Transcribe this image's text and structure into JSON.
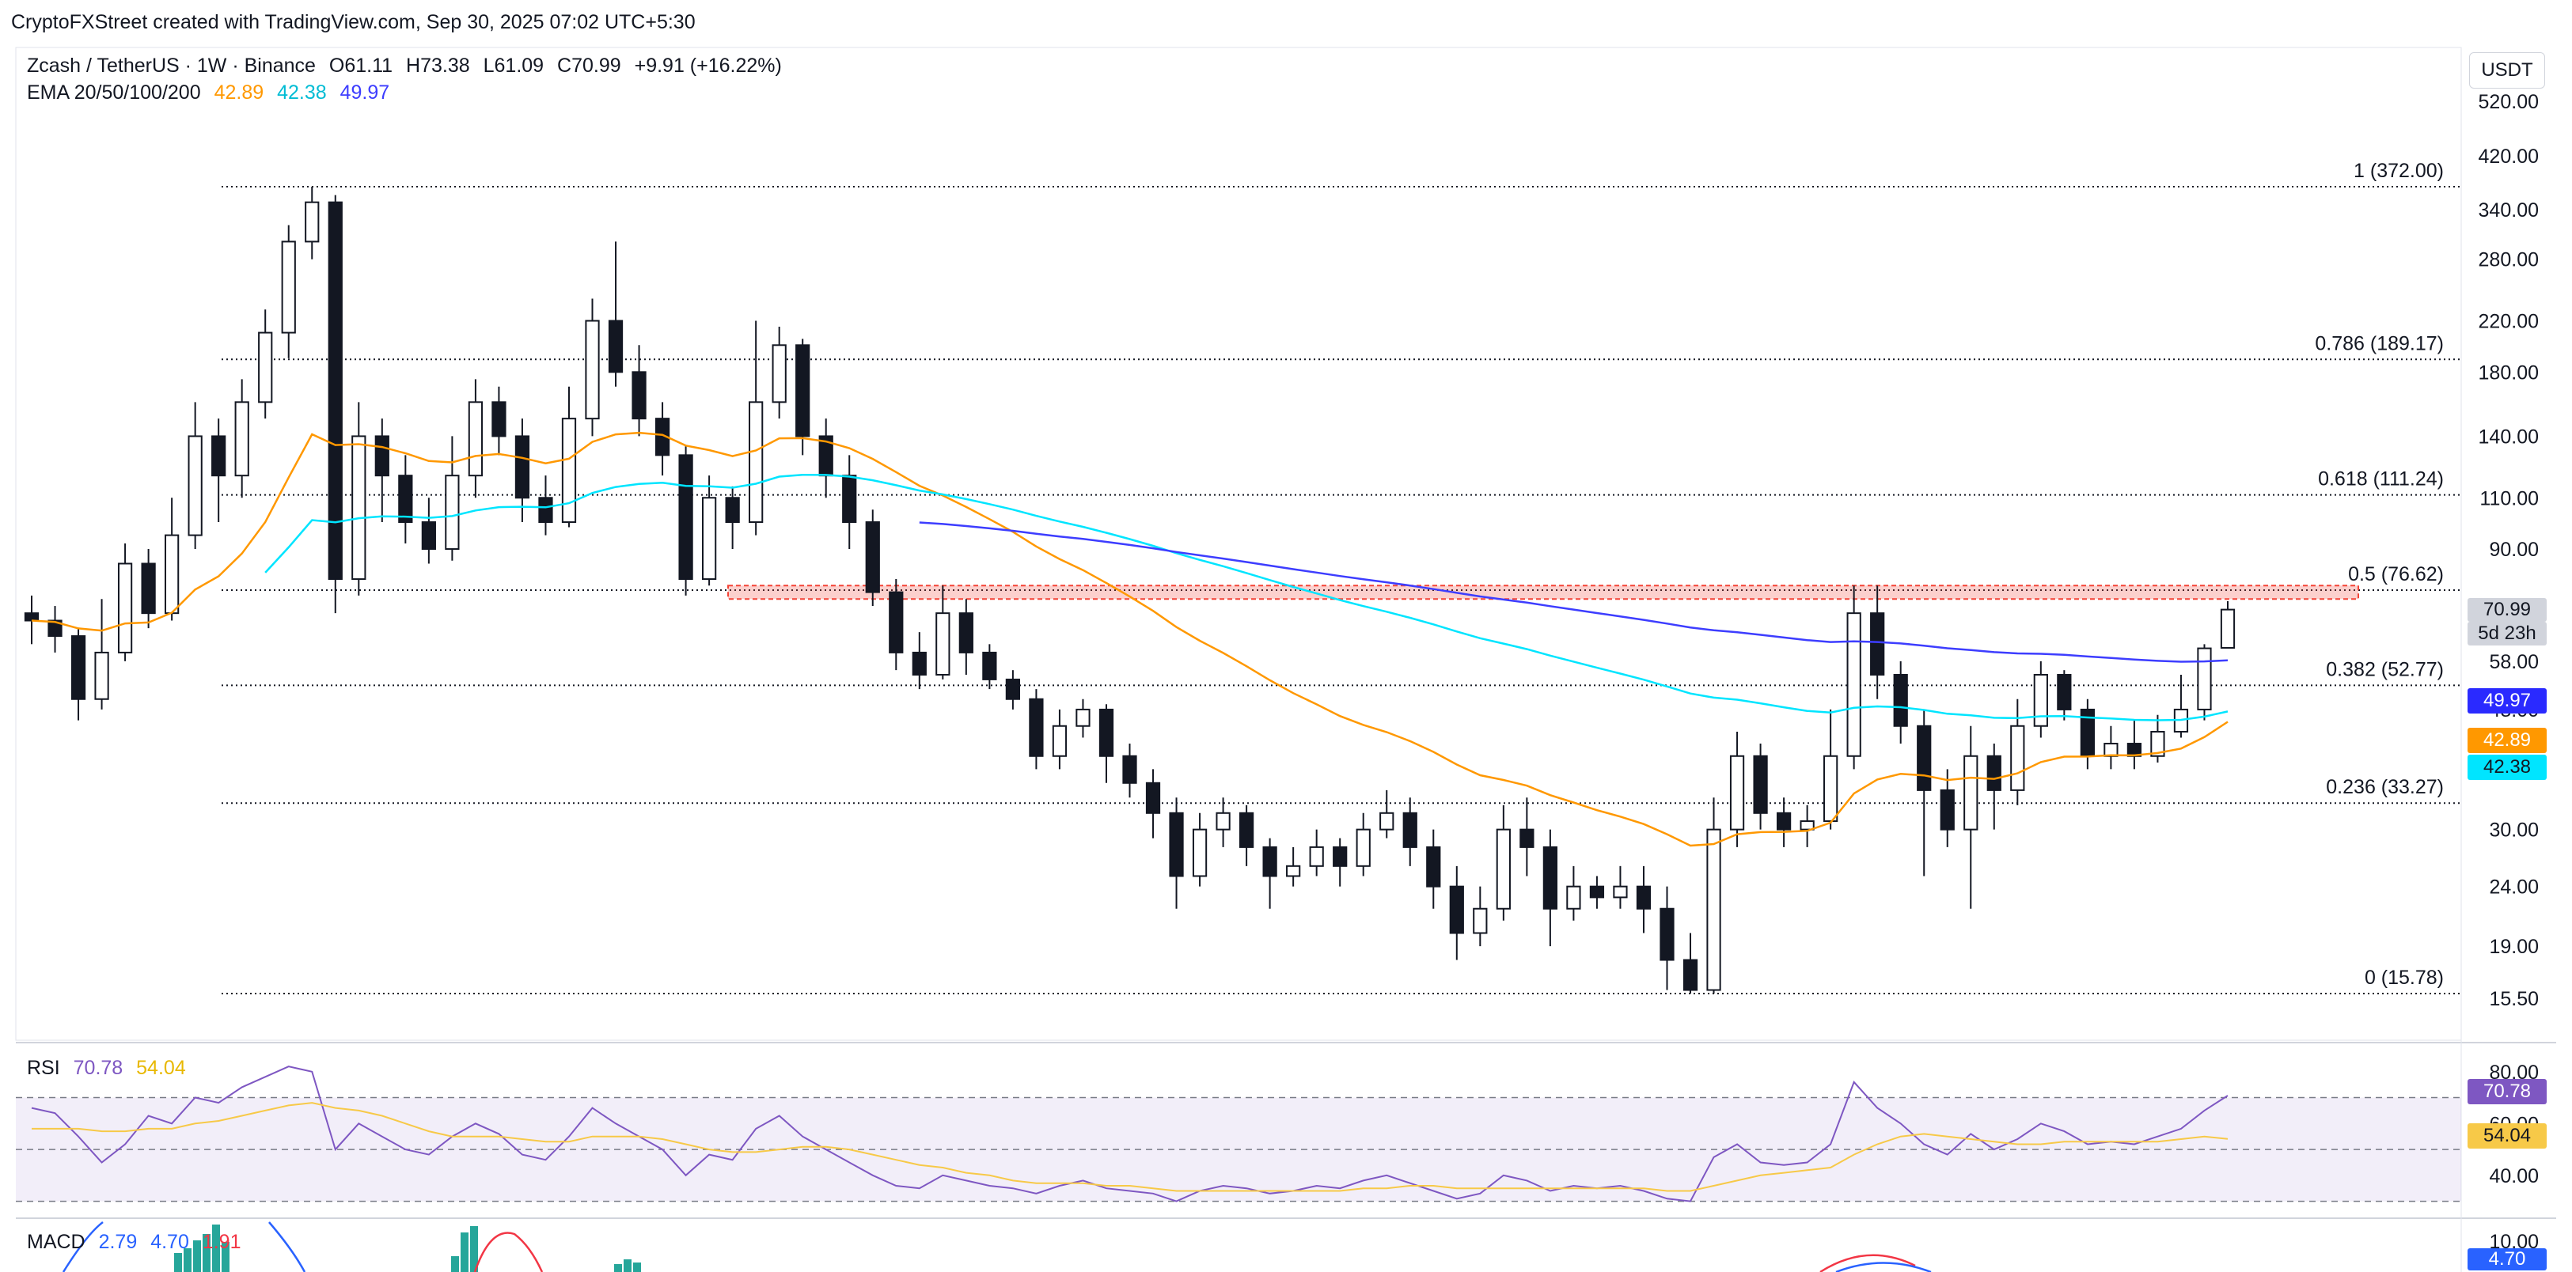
{
  "header": {
    "attribution": "CryptoFXStreet created with TradingView.com, Sep 30, 2025 07:02 UTC+5:30"
  },
  "symbol": {
    "title": "Zcash / TetherUS · 1W · Binance",
    "open": "O61.11",
    "high": "H73.38",
    "low": "L61.09",
    "close": "C70.99",
    "change": "+9.91 (+16.22%)",
    "currency": "USDT"
  },
  "ema_legend": {
    "label": "EMA 20/50/100/200",
    "ema20": "42.89",
    "ema50": "42.38",
    "ema100": "49.97"
  },
  "price_tags": {
    "last_price": "70.99",
    "countdown": "5d 23h",
    "ema100": "49.97",
    "ema20": "42.89",
    "ema50": "42.38"
  },
  "rsi": {
    "label": "RSI",
    "value": "70.78",
    "ma": "54.04"
  },
  "macd": {
    "label": "MACD",
    "v1": "2.79",
    "v2": "4.70",
    "v3": "1.91",
    "tag": "4.70"
  },
  "colors": {
    "up": "#089981",
    "down": "#131722",
    "ema20": "#ff9800",
    "ema50": "#00e5ff",
    "ema100": "#3d3dff",
    "rsi": "#7e57c2",
    "rsi_ma": "#f7c948",
    "resistance": "#f44336"
  },
  "chart_data": [
    {
      "type": "candlestick",
      "title": "Zcash / TetherUS · 1W · Binance",
      "scale": "log",
      "ylim": [
        15,
        600
      ],
      "y_ticks": [
        "520.00",
        "420.00",
        "340.00",
        "280.00",
        "220.00",
        "180.00",
        "140.00",
        "110.00",
        "90.00",
        "71.00",
        "58.00",
        "48.00",
        "30.00",
        "24.00",
        "19.00",
        "15.50"
      ],
      "fibonacci": [
        {
          "label": "1 (372.00)",
          "value": 372.0
        },
        {
          "label": "0.786 (189.17)",
          "value": 189.17
        },
        {
          "label": "0.618 (111.24)",
          "value": 111.24
        },
        {
          "label": "0.5 (76.62)",
          "value": 76.62
        },
        {
          "label": "0.382 (52.77)",
          "value": 52.77
        },
        {
          "label": "0.236 (33.27)",
          "value": 33.27
        },
        {
          "label": "0 (15.78)",
          "value": 15.78
        }
      ],
      "resistance_zone": [
        74.0,
        78.0
      ],
      "candles": [
        [
          70,
          68,
          75,
          62
        ],
        [
          68,
          64,
          72,
          60
        ],
        [
          64,
          50,
          66,
          46
        ],
        [
          50,
          60,
          74,
          48
        ],
        [
          60,
          85,
          92,
          58
        ],
        [
          85,
          70,
          90,
          66
        ],
        [
          70,
          95,
          110,
          68
        ],
        [
          95,
          140,
          160,
          90
        ],
        [
          140,
          120,
          150,
          100
        ],
        [
          120,
          160,
          175,
          110
        ],
        [
          160,
          210,
          230,
          150
        ],
        [
          210,
          300,
          320,
          190
        ],
        [
          300,
          350,
          372,
          280
        ],
        [
          350,
          80,
          360,
          70
        ],
        [
          80,
          140,
          160,
          75
        ],
        [
          140,
          120,
          150,
          100
        ],
        [
          120,
          100,
          130,
          92
        ],
        [
          100,
          90,
          110,
          85
        ],
        [
          90,
          120,
          140,
          86
        ],
        [
          120,
          160,
          175,
          110
        ],
        [
          160,
          140,
          170,
          130
        ],
        [
          140,
          110,
          150,
          100
        ],
        [
          110,
          100,
          120,
          95
        ],
        [
          100,
          150,
          170,
          98
        ],
        [
          150,
          220,
          240,
          140
        ],
        [
          220,
          180,
          300,
          170
        ],
        [
          180,
          150,
          200,
          140
        ],
        [
          150,
          130,
          160,
          120
        ],
        [
          130,
          80,
          135,
          75
        ],
        [
          80,
          110,
          120,
          78
        ],
        [
          110,
          100,
          115,
          90
        ],
        [
          100,
          160,
          220,
          95
        ],
        [
          160,
          200,
          215,
          150
        ],
        [
          200,
          140,
          205,
          130
        ],
        [
          140,
          120,
          150,
          110
        ],
        [
          120,
          100,
          130,
          90
        ],
        [
          100,
          76,
          105,
          72
        ],
        [
          76,
          60,
          80,
          56
        ],
        [
          60,
          55,
          65,
          52
        ],
        [
          55,
          70,
          78,
          54
        ],
        [
          70,
          60,
          74,
          55
        ],
        [
          60,
          54,
          62,
          52
        ],
        [
          54,
          50,
          56,
          48
        ],
        [
          50,
          40,
          52,
          38
        ],
        [
          40,
          45,
          48,
          38
        ],
        [
          45,
          48,
          50,
          43
        ],
        [
          48,
          40,
          49,
          36
        ],
        [
          40,
          36,
          42,
          34
        ],
        [
          36,
          32,
          38,
          29
        ],
        [
          32,
          25,
          34,
          22
        ],
        [
          25,
          30,
          32,
          24
        ],
        [
          30,
          32,
          34,
          28
        ],
        [
          32,
          28,
          33,
          26
        ],
        [
          28,
          25,
          29,
          22
        ],
        [
          25,
          26,
          28,
          24
        ],
        [
          26,
          28,
          30,
          25
        ],
        [
          28,
          26,
          29,
          24
        ],
        [
          26,
          30,
          32,
          25
        ],
        [
          30,
          32,
          35,
          29
        ],
        [
          32,
          28,
          34,
          26
        ],
        [
          28,
          24,
          30,
          22
        ],
        [
          24,
          20,
          26,
          18
        ],
        [
          20,
          22,
          24,
          19
        ],
        [
          22,
          30,
          33,
          21
        ],
        [
          30,
          28,
          34,
          25
        ],
        [
          28,
          22,
          30,
          19
        ],
        [
          22,
          24,
          26,
          21
        ],
        [
          24,
          23,
          25,
          22
        ],
        [
          23,
          24,
          26,
          22
        ],
        [
          24,
          22,
          26,
          20
        ],
        [
          22,
          18,
          24,
          16
        ],
        [
          18,
          16,
          20,
          15.78
        ],
        [
          16,
          30,
          34,
          15.78
        ],
        [
          30,
          40,
          44,
          28
        ],
        [
          40,
          32,
          42,
          30
        ],
        [
          32,
          30,
          34,
          28
        ],
        [
          30,
          31,
          33,
          28
        ],
        [
          31,
          40,
          48,
          30
        ],
        [
          40,
          70,
          78,
          38
        ],
        [
          70,
          55,
          78,
          50
        ],
        [
          55,
          45,
          58,
          42
        ],
        [
          45,
          35,
          48,
          25
        ],
        [
          35,
          30,
          38,
          28
        ],
        [
          30,
          40,
          45,
          22
        ],
        [
          40,
          35,
          42,
          30
        ],
        [
          35,
          45,
          50,
          33
        ],
        [
          45,
          55,
          58,
          43
        ],
        [
          55,
          48,
          56,
          46
        ],
        [
          48,
          40,
          50,
          38
        ],
        [
          40,
          42,
          45,
          38
        ],
        [
          42,
          40,
          46,
          38
        ],
        [
          40,
          44,
          47,
          39
        ],
        [
          44,
          48,
          55,
          43
        ],
        [
          48,
          61,
          62,
          46
        ],
        [
          61.11,
          70.99,
          73.38,
          61.09
        ]
      ]
    },
    {
      "type": "line",
      "title": "RSI",
      "ylim": [
        25,
        90
      ],
      "y_ticks": [
        "80.00",
        "60.00",
        "40.00"
      ],
      "bands": [
        70,
        50,
        30
      ],
      "series": [
        {
          "name": "RSI",
          "values": [
            66,
            64,
            55,
            45,
            52,
            63,
            60,
            70,
            68,
            74,
            78,
            82,
            80,
            50,
            60,
            55,
            50,
            48,
            55,
            60,
            56,
            48,
            46,
            55,
            66,
            60,
            55,
            50,
            40,
            48,
            46,
            58,
            63,
            55,
            50,
            45,
            40,
            36,
            35,
            40,
            38,
            36,
            35,
            33,
            36,
            38,
            35,
            34,
            33,
            30,
            34,
            36,
            35,
            33,
            34,
            36,
            35,
            38,
            40,
            37,
            34,
            31,
            33,
            40,
            38,
            34,
            36,
            35,
            36,
            34,
            31,
            30,
            47,
            52,
            45,
            44,
            45,
            52,
            76,
            66,
            60,
            52,
            48,
            56,
            50,
            54,
            60,
            57,
            52,
            53,
            52,
            55,
            58,
            65,
            70.78
          ]
        },
        {
          "name": "RSI MA",
          "values": [
            58,
            58,
            58,
            57,
            57,
            58,
            58,
            60,
            61,
            63,
            65,
            67,
            68,
            66,
            65,
            63,
            60,
            57,
            55,
            55,
            55,
            54,
            53,
            53,
            55,
            55,
            55,
            54,
            52,
            50,
            49,
            49,
            50,
            51,
            51,
            50,
            48,
            46,
            44,
            43,
            41,
            40,
            38,
            37,
            37,
            37,
            36,
            36,
            35,
            34,
            34,
            34,
            34,
            34,
            34,
            34,
            34,
            35,
            35,
            36,
            36,
            35,
            35,
            35,
            35,
            35,
            35,
            35,
            35,
            35,
            34,
            34,
            36,
            38,
            40,
            41,
            42,
            43,
            48,
            52,
            55,
            56,
            55,
            54,
            53,
            52,
            52,
            53,
            53,
            53,
            53,
            53,
            54,
            55,
            54.04
          ]
        }
      ]
    },
    {
      "type": "bar",
      "title": "MACD",
      "values": [
        2.79,
        4.7,
        1.91
      ]
    }
  ]
}
